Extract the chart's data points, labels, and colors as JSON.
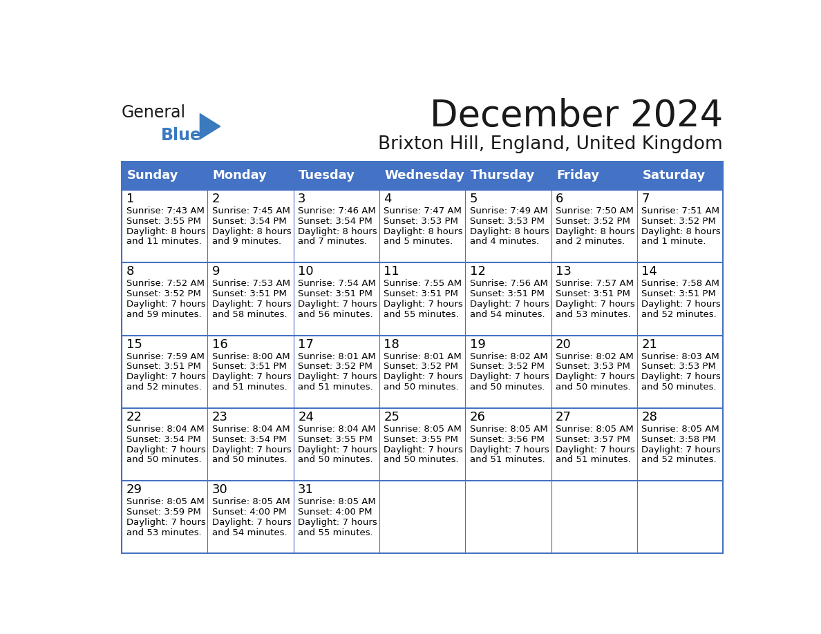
{
  "title": "December 2024",
  "subtitle": "Brixton Hill, England, United Kingdom",
  "days_of_week": [
    "Sunday",
    "Monday",
    "Tuesday",
    "Wednesday",
    "Thursday",
    "Friday",
    "Saturday"
  ],
  "header_bg": "#4472C4",
  "header_text_color": "#FFFFFF",
  "text_color": "#000000",
  "title_color": "#1a1a1a",
  "logo_color_general": "#1a1a1a",
  "logo_color_blue": "#3a7abf",
  "calendar_data": [
    [
      {
        "day": 1,
        "sunrise": "7:43 AM",
        "sunset": "3:55 PM",
        "daylight_line1": "Daylight: 8 hours",
        "daylight_line2": "and 11 minutes."
      },
      {
        "day": 2,
        "sunrise": "7:45 AM",
        "sunset": "3:54 PM",
        "daylight_line1": "Daylight: 8 hours",
        "daylight_line2": "and 9 minutes."
      },
      {
        "day": 3,
        "sunrise": "7:46 AM",
        "sunset": "3:54 PM",
        "daylight_line1": "Daylight: 8 hours",
        "daylight_line2": "and 7 minutes."
      },
      {
        "day": 4,
        "sunrise": "7:47 AM",
        "sunset": "3:53 PM",
        "daylight_line1": "Daylight: 8 hours",
        "daylight_line2": "and 5 minutes."
      },
      {
        "day": 5,
        "sunrise": "7:49 AM",
        "sunset": "3:53 PM",
        "daylight_line1": "Daylight: 8 hours",
        "daylight_line2": "and 4 minutes."
      },
      {
        "day": 6,
        "sunrise": "7:50 AM",
        "sunset": "3:52 PM",
        "daylight_line1": "Daylight: 8 hours",
        "daylight_line2": "and 2 minutes."
      },
      {
        "day": 7,
        "sunrise": "7:51 AM",
        "sunset": "3:52 PM",
        "daylight_line1": "Daylight: 8 hours",
        "daylight_line2": "and 1 minute."
      }
    ],
    [
      {
        "day": 8,
        "sunrise": "7:52 AM",
        "sunset": "3:52 PM",
        "daylight_line1": "Daylight: 7 hours",
        "daylight_line2": "and 59 minutes."
      },
      {
        "day": 9,
        "sunrise": "7:53 AM",
        "sunset": "3:51 PM",
        "daylight_line1": "Daylight: 7 hours",
        "daylight_line2": "and 58 minutes."
      },
      {
        "day": 10,
        "sunrise": "7:54 AM",
        "sunset": "3:51 PM",
        "daylight_line1": "Daylight: 7 hours",
        "daylight_line2": "and 56 minutes."
      },
      {
        "day": 11,
        "sunrise": "7:55 AM",
        "sunset": "3:51 PM",
        "daylight_line1": "Daylight: 7 hours",
        "daylight_line2": "and 55 minutes."
      },
      {
        "day": 12,
        "sunrise": "7:56 AM",
        "sunset": "3:51 PM",
        "daylight_line1": "Daylight: 7 hours",
        "daylight_line2": "and 54 minutes."
      },
      {
        "day": 13,
        "sunrise": "7:57 AM",
        "sunset": "3:51 PM",
        "daylight_line1": "Daylight: 7 hours",
        "daylight_line2": "and 53 minutes."
      },
      {
        "day": 14,
        "sunrise": "7:58 AM",
        "sunset": "3:51 PM",
        "daylight_line1": "Daylight: 7 hours",
        "daylight_line2": "and 52 minutes."
      }
    ],
    [
      {
        "day": 15,
        "sunrise": "7:59 AM",
        "sunset": "3:51 PM",
        "daylight_line1": "Daylight: 7 hours",
        "daylight_line2": "and 52 minutes."
      },
      {
        "day": 16,
        "sunrise": "8:00 AM",
        "sunset": "3:51 PM",
        "daylight_line1": "Daylight: 7 hours",
        "daylight_line2": "and 51 minutes."
      },
      {
        "day": 17,
        "sunrise": "8:01 AM",
        "sunset": "3:52 PM",
        "daylight_line1": "Daylight: 7 hours",
        "daylight_line2": "and 51 minutes."
      },
      {
        "day": 18,
        "sunrise": "8:01 AM",
        "sunset": "3:52 PM",
        "daylight_line1": "Daylight: 7 hours",
        "daylight_line2": "and 50 minutes."
      },
      {
        "day": 19,
        "sunrise": "8:02 AM",
        "sunset": "3:52 PM",
        "daylight_line1": "Daylight: 7 hours",
        "daylight_line2": "and 50 minutes."
      },
      {
        "day": 20,
        "sunrise": "8:02 AM",
        "sunset": "3:53 PM",
        "daylight_line1": "Daylight: 7 hours",
        "daylight_line2": "and 50 minutes."
      },
      {
        "day": 21,
        "sunrise": "8:03 AM",
        "sunset": "3:53 PM",
        "daylight_line1": "Daylight: 7 hours",
        "daylight_line2": "and 50 minutes."
      }
    ],
    [
      {
        "day": 22,
        "sunrise": "8:04 AM",
        "sunset": "3:54 PM",
        "daylight_line1": "Daylight: 7 hours",
        "daylight_line2": "and 50 minutes."
      },
      {
        "day": 23,
        "sunrise": "8:04 AM",
        "sunset": "3:54 PM",
        "daylight_line1": "Daylight: 7 hours",
        "daylight_line2": "and 50 minutes."
      },
      {
        "day": 24,
        "sunrise": "8:04 AM",
        "sunset": "3:55 PM",
        "daylight_line1": "Daylight: 7 hours",
        "daylight_line2": "and 50 minutes."
      },
      {
        "day": 25,
        "sunrise": "8:05 AM",
        "sunset": "3:55 PM",
        "daylight_line1": "Daylight: 7 hours",
        "daylight_line2": "and 50 minutes."
      },
      {
        "day": 26,
        "sunrise": "8:05 AM",
        "sunset": "3:56 PM",
        "daylight_line1": "Daylight: 7 hours",
        "daylight_line2": "and 51 minutes."
      },
      {
        "day": 27,
        "sunrise": "8:05 AM",
        "sunset": "3:57 PM",
        "daylight_line1": "Daylight: 7 hours",
        "daylight_line2": "and 51 minutes."
      },
      {
        "day": 28,
        "sunrise": "8:05 AM",
        "sunset": "3:58 PM",
        "daylight_line1": "Daylight: 7 hours",
        "daylight_line2": "and 52 minutes."
      }
    ],
    [
      {
        "day": 29,
        "sunrise": "8:05 AM",
        "sunset": "3:59 PM",
        "daylight_line1": "Daylight: 7 hours",
        "daylight_line2": "and 53 minutes."
      },
      {
        "day": 30,
        "sunrise": "8:05 AM",
        "sunset": "4:00 PM",
        "daylight_line1": "Daylight: 7 hours",
        "daylight_line2": "and 54 minutes."
      },
      {
        "day": 31,
        "sunrise": "8:05 AM",
        "sunset": "4:00 PM",
        "daylight_line1": "Daylight: 7 hours",
        "daylight_line2": "and 55 minutes."
      },
      null,
      null,
      null,
      null
    ]
  ]
}
